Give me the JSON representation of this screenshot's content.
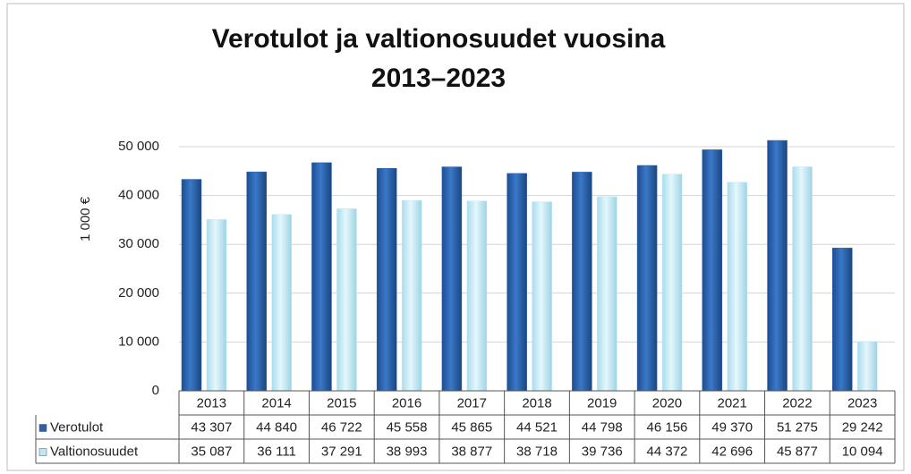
{
  "chart_data": {
    "type": "bar",
    "title": "Verotulot ja valtionosuudet vuosina 2013–2023",
    "y_label": "1 000 €",
    "categories": [
      "2013",
      "2014",
      "2015",
      "2016",
      "2017",
      "2018",
      "2019",
      "2020",
      "2021",
      "2022",
      "2023"
    ],
    "series": [
      {
        "name": "Verotulot",
        "color": "#2a62ad",
        "values": [
          43307,
          44840,
          46722,
          45558,
          45865,
          44521,
          44798,
          46156,
          49370,
          51275,
          29242
        ],
        "value_labels": [
          "43 307",
          "44 840",
          "46 722",
          "45 558",
          "45 865",
          "44 521",
          "44 798",
          "46 156",
          "49 370",
          "51 275",
          "29 242"
        ]
      },
      {
        "name": "Valtionosuudet",
        "color": "#bfe8f4",
        "values": [
          35087,
          36111,
          37291,
          38993,
          38877,
          38718,
          39736,
          44372,
          42696,
          45877,
          10094
        ],
        "value_labels": [
          "35 087",
          "36 111",
          "37 291",
          "38 993",
          "38 877",
          "38 718",
          "39 736",
          "44 372",
          "42 696",
          "45 877",
          "10 094"
        ]
      }
    ],
    "ylim": [
      0,
      50000
    ],
    "yticks": [
      0,
      {
        "value": 10000,
        "label": "10 000"
      },
      {
        "value": 20000,
        "label": "20 000"
      },
      {
        "value": 30000,
        "label": "30 000"
      },
      {
        "value": 40000,
        "label": "40 000"
      },
      {
        "value": 50000,
        "label": "50 000"
      }
    ],
    "grid": true
  }
}
